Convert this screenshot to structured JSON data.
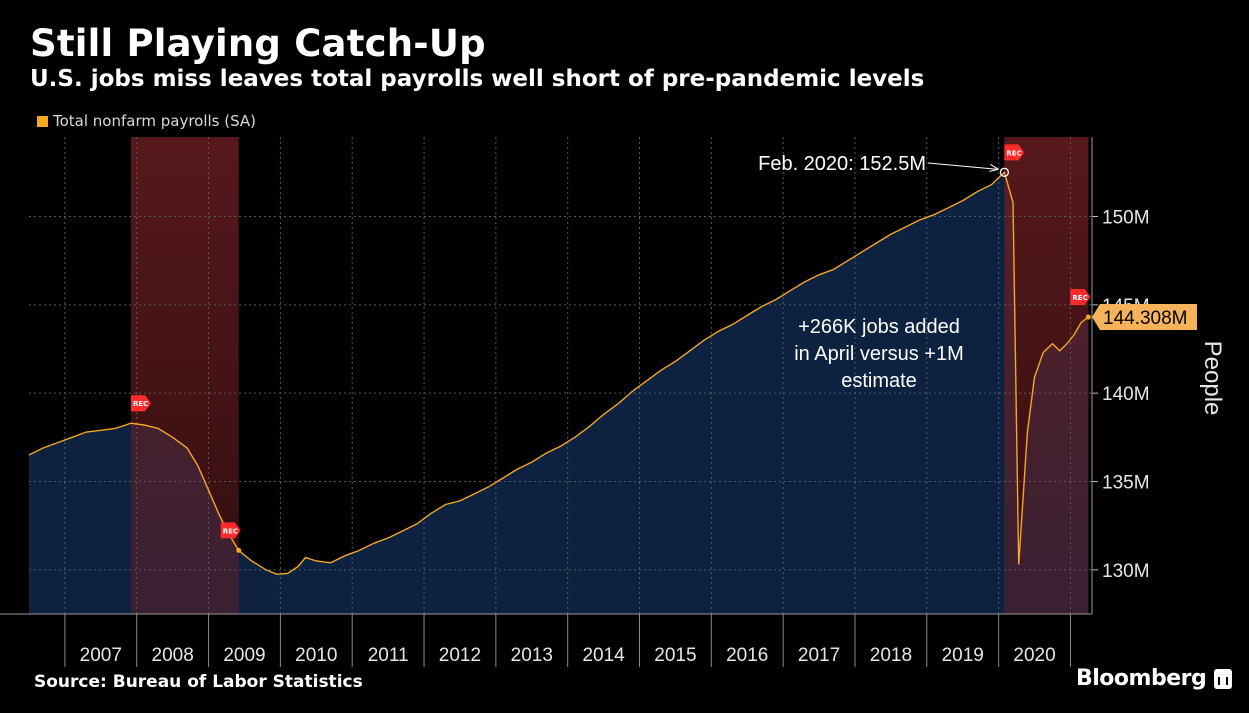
{
  "header": {
    "title": "Still Playing Catch-Up",
    "subtitle": "U.S. jobs miss leaves total payrolls well short of pre-pandemic levels"
  },
  "legend": {
    "label": "Total nonfarm payrolls (SA)",
    "color": "#f5a623"
  },
  "footer": {
    "source": "Source: Bureau of Labor Statistics",
    "brand": "Bloomberg"
  },
  "colors": {
    "background": "#000000",
    "area_fill": "#0d2240",
    "line": "#f5a623",
    "recession_band": "#6b1e22",
    "recession_flag": "#ff2a2a",
    "grid": "#5a5a5a"
  },
  "chart_data": {
    "type": "area",
    "x_unit": "decimal year",
    "xlim": [
      2006.5,
      2021.3
    ],
    "ylim": [
      127.5,
      154.5
    ],
    "ylabel": "People",
    "yticks": [
      {
        "value": 130,
        "label": "130M"
      },
      {
        "value": 135,
        "label": "135M"
      },
      {
        "value": 140,
        "label": "140M"
      },
      {
        "value": 145,
        "label": "145M"
      },
      {
        "value": 150,
        "label": "150M"
      }
    ],
    "xticks": [
      "2007",
      "2008",
      "2009",
      "2010",
      "2011",
      "2012",
      "2013",
      "2014",
      "2015",
      "2016",
      "2017",
      "2018",
      "2019",
      "2020"
    ],
    "recessions": [
      {
        "start": 2007.92,
        "end": 2009.42
      },
      {
        "start": 2020.08,
        "end": 2021.25
      }
    ],
    "recession_flag_label": "REC",
    "series": [
      {
        "name": "Total nonfarm payrolls (SA)",
        "points": [
          [
            2006.5,
            136.5
          ],
          [
            2006.7,
            136.9
          ],
          [
            2006.9,
            137.2
          ],
          [
            2007.1,
            137.5
          ],
          [
            2007.3,
            137.8
          ],
          [
            2007.5,
            137.9
          ],
          [
            2007.7,
            138.0
          ],
          [
            2007.92,
            138.3
          ],
          [
            2008.1,
            138.2
          ],
          [
            2008.3,
            138.0
          ],
          [
            2008.5,
            137.5
          ],
          [
            2008.7,
            136.9
          ],
          [
            2008.85,
            135.9
          ],
          [
            2009.0,
            134.5
          ],
          [
            2009.15,
            133.1
          ],
          [
            2009.3,
            131.9
          ],
          [
            2009.42,
            131.1
          ],
          [
            2009.6,
            130.5
          ],
          [
            2009.8,
            130.0
          ],
          [
            2009.95,
            129.75
          ],
          [
            2010.1,
            129.8
          ],
          [
            2010.25,
            130.2
          ],
          [
            2010.35,
            130.7
          ],
          [
            2010.5,
            130.5
          ],
          [
            2010.7,
            130.4
          ],
          [
            2010.9,
            130.8
          ],
          [
            2011.1,
            131.1
          ],
          [
            2011.3,
            131.5
          ],
          [
            2011.5,
            131.8
          ],
          [
            2011.7,
            132.2
          ],
          [
            2011.9,
            132.6
          ],
          [
            2012.1,
            133.2
          ],
          [
            2012.3,
            133.7
          ],
          [
            2012.5,
            133.9
          ],
          [
            2012.7,
            134.3
          ],
          [
            2012.9,
            134.7
          ],
          [
            2013.1,
            135.2
          ],
          [
            2013.3,
            135.7
          ],
          [
            2013.5,
            136.1
          ],
          [
            2013.7,
            136.6
          ],
          [
            2013.9,
            137.0
          ],
          [
            2014.1,
            137.5
          ],
          [
            2014.3,
            138.1
          ],
          [
            2014.5,
            138.8
          ],
          [
            2014.7,
            139.4
          ],
          [
            2014.9,
            140.1
          ],
          [
            2015.1,
            140.7
          ],
          [
            2015.3,
            141.3
          ],
          [
            2015.5,
            141.8
          ],
          [
            2015.7,
            142.4
          ],
          [
            2015.9,
            143.0
          ],
          [
            2016.1,
            143.5
          ],
          [
            2016.3,
            143.9
          ],
          [
            2016.5,
            144.4
          ],
          [
            2016.7,
            144.9
          ],
          [
            2016.9,
            145.3
          ],
          [
            2017.1,
            145.8
          ],
          [
            2017.3,
            146.3
          ],
          [
            2017.5,
            146.7
          ],
          [
            2017.7,
            147.0
          ],
          [
            2017.9,
            147.5
          ],
          [
            2018.1,
            148.0
          ],
          [
            2018.3,
            148.5
          ],
          [
            2018.5,
            149.0
          ],
          [
            2018.7,
            149.4
          ],
          [
            2018.9,
            149.8
          ],
          [
            2019.1,
            150.1
          ],
          [
            2019.3,
            150.5
          ],
          [
            2019.5,
            150.9
          ],
          [
            2019.7,
            151.4
          ],
          [
            2019.9,
            151.8
          ],
          [
            2020.08,
            152.5
          ],
          [
            2020.2,
            150.8
          ],
          [
            2020.28,
            130.3
          ],
          [
            2020.4,
            137.8
          ],
          [
            2020.5,
            140.9
          ],
          [
            2020.62,
            142.3
          ],
          [
            2020.75,
            142.8
          ],
          [
            2020.85,
            142.4
          ],
          [
            2020.95,
            142.8
          ],
          [
            2021.05,
            143.3
          ],
          [
            2021.15,
            144.0
          ],
          [
            2021.25,
            144.308
          ]
        ]
      }
    ],
    "annotations": [
      {
        "text": "Feb. 2020: 152.5M",
        "x": 2020.08,
        "y": 152.5
      },
      {
        "text_lines": [
          "+266K jobs added",
          "in April versus +1M",
          "estimate"
        ]
      }
    ],
    "last_value_label": "144.308M"
  }
}
